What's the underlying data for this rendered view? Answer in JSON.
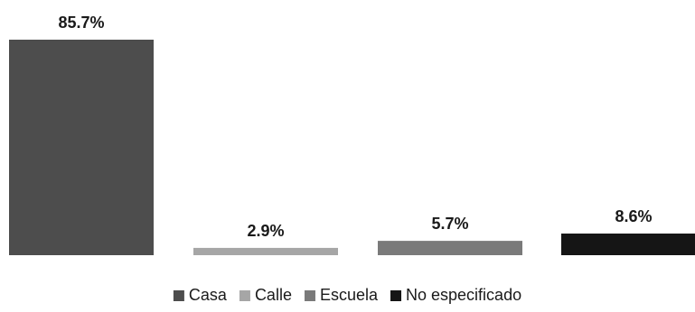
{
  "chart_data": {
    "type": "bar",
    "categories": [
      "Casa",
      "Calle",
      "Escuela",
      "No especificado"
    ],
    "values": [
      85.7,
      2.9,
      5.7,
      8.6
    ],
    "value_labels": [
      "85.7%",
      "2.9%",
      "5.7%",
      "8.6%"
    ],
    "colors": [
      "#4d4d4d",
      "#a6a6a6",
      "#7a7a7a",
      "#151515"
    ],
    "title": "",
    "xlabel": "",
    "ylabel": "",
    "ylim": [
      0,
      85.7
    ],
    "grid": false,
    "legend": {
      "position": "bottom",
      "items": [
        "Casa",
        "Calle",
        "Escuela",
        "No especificado"
      ]
    }
  }
}
